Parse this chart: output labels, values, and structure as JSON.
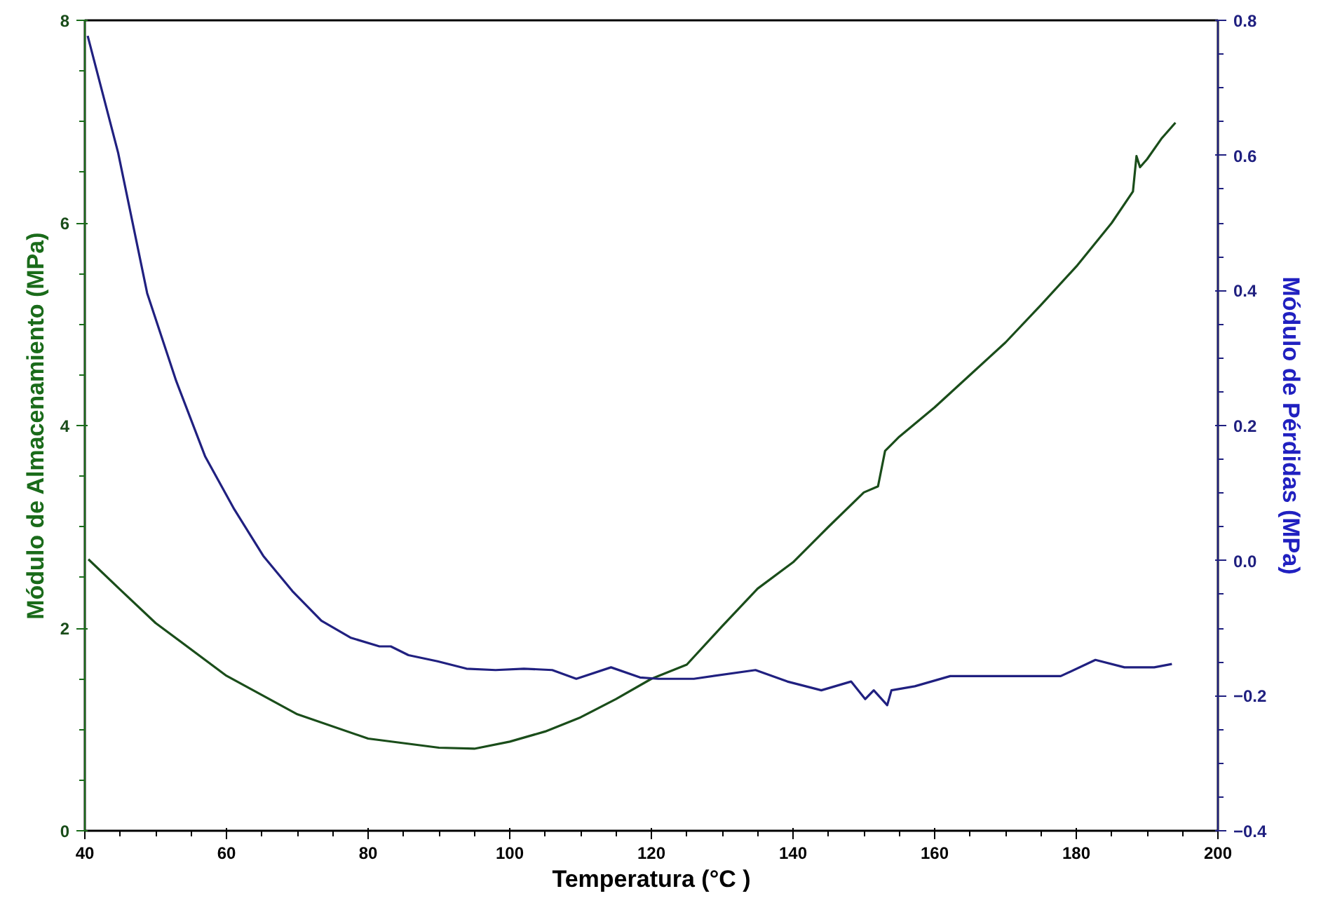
{
  "chart_data": {
    "type": "line",
    "xlabel": "Temperatura (°C )",
    "ylabel": "Módulo de Almacenamiento (MPa)",
    "y2label": "Módulo de Pérdidas (MPa)",
    "xlim": [
      40,
      200
    ],
    "xticks": [
      40,
      60,
      80,
      100,
      120,
      140,
      160,
      180,
      200
    ],
    "ylim": [
      0,
      8
    ],
    "yticks": [
      0,
      2,
      4,
      6,
      8
    ],
    "y2lim": [
      -0.4,
      0.8
    ],
    "y2ticks": [
      -0.4,
      -0.2,
      {
        "value": 0,
        "label": "0.0"
      },
      0.2,
      0.4,
      0.6,
      0.8
    ],
    "grid": false,
    "marker": "none",
    "line_style": "solid",
    "series": [
      {
        "color": "#1a4d1a",
        "x": [
          40.5,
          45,
          50,
          60,
          70,
          80,
          90,
          95,
          100,
          105,
          110,
          115,
          120,
          125,
          130,
          135,
          140,
          145,
          150,
          152,
          153,
          155,
          160,
          165,
          170,
          175,
          180,
          185,
          188,
          188.5,
          189,
          190,
          192,
          194
        ],
        "values": [
          2.68,
          2.38,
          2.05,
          1.53,
          1.15,
          0.91,
          0.82,
          0.81,
          0.88,
          0.98,
          1.12,
          1.3,
          1.5,
          1.64,
          2.02,
          2.39,
          2.65,
          3.0,
          3.34,
          3.4,
          3.75,
          3.89,
          4.18,
          4.5,
          4.82,
          5.19,
          5.57,
          6.0,
          6.31,
          6.66,
          6.55,
          6.63,
          6.83,
          6.99
        ]
      },
      {
        "color": "#202080",
        "axis": "y2",
        "x": [
          40.4,
          44.7,
          48.8,
          52.9,
          57.0,
          61.1,
          65.2,
          69.3,
          73.4,
          77.5,
          81.6,
          83.2,
          85.7,
          89.8,
          93.9,
          98,
          102,
          106,
          109.4,
          114.3,
          118.4,
          121,
          126,
          134.7,
          139.2,
          144,
          148.2,
          150.2,
          151.4,
          153.3,
          153.9,
          157.2,
          162.2,
          170.4,
          177.8,
          182.7,
          186.8,
          191,
          193.5
        ],
        "values": [
          0.777,
          0.604,
          0.396,
          0.266,
          0.154,
          0.076,
          0.007,
          -0.045,
          -0.089,
          -0.114,
          -0.127,
          -0.127,
          -0.14,
          -0.149,
          -0.16,
          -0.162,
          -0.16,
          -0.162,
          -0.175,
          -0.158,
          -0.173,
          -0.175,
          -0.175,
          -0.162,
          -0.179,
          -0.192,
          -0.179,
          -0.205,
          -0.192,
          -0.214,
          -0.192,
          -0.186,
          -0.171,
          -0.171,
          -0.171,
          -0.147,
          -0.158,
          -0.158,
          -0.153
        ]
      }
    ]
  }
}
